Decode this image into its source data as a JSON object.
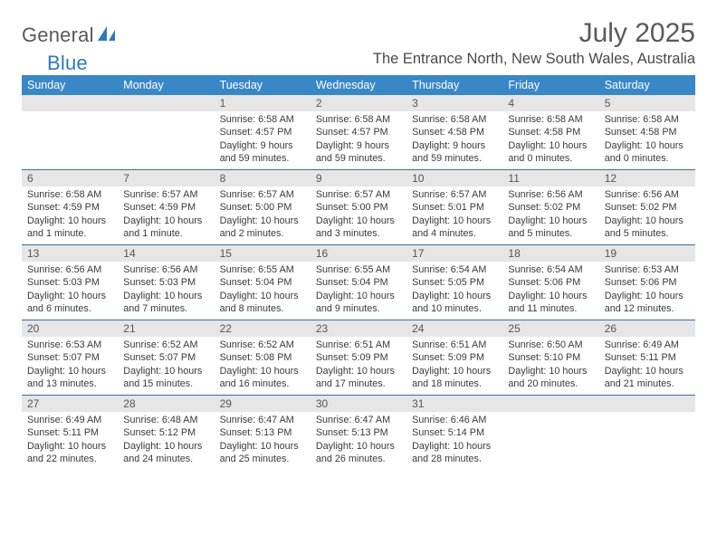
{
  "logo": {
    "text_general": "General",
    "text_blue": "Blue",
    "icon_color": "#2f78bf"
  },
  "title": {
    "month": "July 2025",
    "location": "The Entrance North, New South Wales, Australia"
  },
  "colors": {
    "header_bg": "#3a87c8",
    "header_text": "#ffffff",
    "daynum_bg": "#e6e6e6",
    "week_border": "#3a6f9e",
    "body_text": "#3a3a3a"
  },
  "daynames": [
    "Sunday",
    "Monday",
    "Tuesday",
    "Wednesday",
    "Thursday",
    "Friday",
    "Saturday"
  ],
  "weeks": [
    [
      {
        "blank": true
      },
      {
        "blank": true
      },
      {
        "n": "1",
        "sr": "Sunrise: 6:58 AM",
        "ss": "Sunset: 4:57 PM",
        "dl": "Daylight: 9 hours and 59 minutes."
      },
      {
        "n": "2",
        "sr": "Sunrise: 6:58 AM",
        "ss": "Sunset: 4:57 PM",
        "dl": "Daylight: 9 hours and 59 minutes."
      },
      {
        "n": "3",
        "sr": "Sunrise: 6:58 AM",
        "ss": "Sunset: 4:58 PM",
        "dl": "Daylight: 9 hours and 59 minutes."
      },
      {
        "n": "4",
        "sr": "Sunrise: 6:58 AM",
        "ss": "Sunset: 4:58 PM",
        "dl": "Daylight: 10 hours and 0 minutes."
      },
      {
        "n": "5",
        "sr": "Sunrise: 6:58 AM",
        "ss": "Sunset: 4:58 PM",
        "dl": "Daylight: 10 hours and 0 minutes."
      }
    ],
    [
      {
        "n": "6",
        "sr": "Sunrise: 6:58 AM",
        "ss": "Sunset: 4:59 PM",
        "dl": "Daylight: 10 hours and 1 minute."
      },
      {
        "n": "7",
        "sr": "Sunrise: 6:57 AM",
        "ss": "Sunset: 4:59 PM",
        "dl": "Daylight: 10 hours and 1 minute."
      },
      {
        "n": "8",
        "sr": "Sunrise: 6:57 AM",
        "ss": "Sunset: 5:00 PM",
        "dl": "Daylight: 10 hours and 2 minutes."
      },
      {
        "n": "9",
        "sr": "Sunrise: 6:57 AM",
        "ss": "Sunset: 5:00 PM",
        "dl": "Daylight: 10 hours and 3 minutes."
      },
      {
        "n": "10",
        "sr": "Sunrise: 6:57 AM",
        "ss": "Sunset: 5:01 PM",
        "dl": "Daylight: 10 hours and 4 minutes."
      },
      {
        "n": "11",
        "sr": "Sunrise: 6:56 AM",
        "ss": "Sunset: 5:02 PM",
        "dl": "Daylight: 10 hours and 5 minutes."
      },
      {
        "n": "12",
        "sr": "Sunrise: 6:56 AM",
        "ss": "Sunset: 5:02 PM",
        "dl": "Daylight: 10 hours and 5 minutes."
      }
    ],
    [
      {
        "n": "13",
        "sr": "Sunrise: 6:56 AM",
        "ss": "Sunset: 5:03 PM",
        "dl": "Daylight: 10 hours and 6 minutes."
      },
      {
        "n": "14",
        "sr": "Sunrise: 6:56 AM",
        "ss": "Sunset: 5:03 PM",
        "dl": "Daylight: 10 hours and 7 minutes."
      },
      {
        "n": "15",
        "sr": "Sunrise: 6:55 AM",
        "ss": "Sunset: 5:04 PM",
        "dl": "Daylight: 10 hours and 8 minutes."
      },
      {
        "n": "16",
        "sr": "Sunrise: 6:55 AM",
        "ss": "Sunset: 5:04 PM",
        "dl": "Daylight: 10 hours and 9 minutes."
      },
      {
        "n": "17",
        "sr": "Sunrise: 6:54 AM",
        "ss": "Sunset: 5:05 PM",
        "dl": "Daylight: 10 hours and 10 minutes."
      },
      {
        "n": "18",
        "sr": "Sunrise: 6:54 AM",
        "ss": "Sunset: 5:06 PM",
        "dl": "Daylight: 10 hours and 11 minutes."
      },
      {
        "n": "19",
        "sr": "Sunrise: 6:53 AM",
        "ss": "Sunset: 5:06 PM",
        "dl": "Daylight: 10 hours and 12 minutes."
      }
    ],
    [
      {
        "n": "20",
        "sr": "Sunrise: 6:53 AM",
        "ss": "Sunset: 5:07 PM",
        "dl": "Daylight: 10 hours and 13 minutes."
      },
      {
        "n": "21",
        "sr": "Sunrise: 6:52 AM",
        "ss": "Sunset: 5:07 PM",
        "dl": "Daylight: 10 hours and 15 minutes."
      },
      {
        "n": "22",
        "sr": "Sunrise: 6:52 AM",
        "ss": "Sunset: 5:08 PM",
        "dl": "Daylight: 10 hours and 16 minutes."
      },
      {
        "n": "23",
        "sr": "Sunrise: 6:51 AM",
        "ss": "Sunset: 5:09 PM",
        "dl": "Daylight: 10 hours and 17 minutes."
      },
      {
        "n": "24",
        "sr": "Sunrise: 6:51 AM",
        "ss": "Sunset: 5:09 PM",
        "dl": "Daylight: 10 hours and 18 minutes."
      },
      {
        "n": "25",
        "sr": "Sunrise: 6:50 AM",
        "ss": "Sunset: 5:10 PM",
        "dl": "Daylight: 10 hours and 20 minutes."
      },
      {
        "n": "26",
        "sr": "Sunrise: 6:49 AM",
        "ss": "Sunset: 5:11 PM",
        "dl": "Daylight: 10 hours and 21 minutes."
      }
    ],
    [
      {
        "n": "27",
        "sr": "Sunrise: 6:49 AM",
        "ss": "Sunset: 5:11 PM",
        "dl": "Daylight: 10 hours and 22 minutes."
      },
      {
        "n": "28",
        "sr": "Sunrise: 6:48 AM",
        "ss": "Sunset: 5:12 PM",
        "dl": "Daylight: 10 hours and 24 minutes."
      },
      {
        "n": "29",
        "sr": "Sunrise: 6:47 AM",
        "ss": "Sunset: 5:13 PM",
        "dl": "Daylight: 10 hours and 25 minutes."
      },
      {
        "n": "30",
        "sr": "Sunrise: 6:47 AM",
        "ss": "Sunset: 5:13 PM",
        "dl": "Daylight: 10 hours and 26 minutes."
      },
      {
        "n": "31",
        "sr": "Sunrise: 6:46 AM",
        "ss": "Sunset: 5:14 PM",
        "dl": "Daylight: 10 hours and 28 minutes."
      },
      {
        "blank": true
      },
      {
        "blank": true
      }
    ]
  ]
}
